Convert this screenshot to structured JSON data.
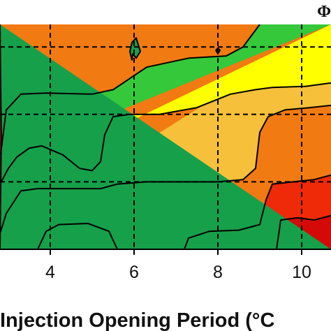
{
  "chart_data": {
    "type": "heatmap",
    "subtype": "filled-contour",
    "xlabel": "Injection Opening Period (°C",
    "x_ticks": [
      {
        "value": 4,
        "label": "4"
      },
      {
        "value": 6,
        "label": "6"
      },
      {
        "value": 8,
        "label": "8"
      },
      {
        "value": 10,
        "label": "10"
      }
    ],
    "xlim": [
      2.8,
      10.7
    ],
    "ylim": [
      0,
      1
    ],
    "grid": "dashed",
    "grid_x": [
      4,
      6,
      8,
      10
    ],
    "grid_y": [
      0.3,
      0.6,
      0.9
    ],
    "corner_label": "Φ",
    "levels": [
      {
        "level": 0,
        "color": "#1a3fd8"
      },
      {
        "level": 1,
        "color": "#16a04a"
      },
      {
        "level": 2,
        "color": "#34c83a"
      },
      {
        "level": 3,
        "color": "#ffff00"
      },
      {
        "level": 4,
        "color": "#f6c03a"
      },
      {
        "level": 5,
        "color": "#f27a12"
      },
      {
        "level": 6,
        "color": "#ee2a08"
      },
      {
        "level": 7,
        "color": "#d40a08"
      }
    ],
    "contours": [
      {
        "level": 2,
        "points": [
          [
            2.8,
            0.4
          ],
          [
            2.95,
            0.62
          ],
          [
            3.3,
            0.69
          ],
          [
            3.9,
            0.695
          ],
          [
            5.0,
            0.69
          ],
          [
            5.5,
            0.71
          ],
          [
            6.3,
            0.81
          ],
          [
            7.3,
            0.85
          ],
          [
            8.2,
            0.86
          ],
          [
            8.6,
            0.9
          ],
          [
            9.0,
            1.0
          ]
        ]
      },
      {
        "level": 3,
        "points": [
          [
            2.8,
            0.29
          ],
          [
            3.0,
            0.36
          ],
          [
            3.2,
            0.41
          ],
          [
            3.5,
            0.45
          ],
          [
            3.8,
            0.46
          ],
          [
            4.3,
            0.42
          ],
          [
            4.7,
            0.36
          ],
          [
            5.0,
            0.35
          ],
          [
            5.2,
            0.39
          ],
          [
            5.3,
            0.51
          ],
          [
            5.5,
            0.59
          ],
          [
            5.9,
            0.6
          ],
          [
            6.6,
            0.6
          ],
          [
            7.5,
            0.63
          ],
          [
            8.3,
            0.69
          ],
          [
            8.9,
            0.71
          ],
          [
            9.3,
            0.72
          ],
          [
            10.1,
            0.725
          ],
          [
            10.7,
            0.74
          ]
        ]
      },
      {
        "level": 4,
        "points": [
          [
            2.8,
            0.07
          ],
          [
            2.95,
            0.16
          ],
          [
            3.3,
            0.26
          ],
          [
            3.7,
            0.27
          ],
          [
            5.2,
            0.27
          ],
          [
            5.6,
            0.29
          ],
          [
            6.3,
            0.3
          ],
          [
            7.2,
            0.3
          ],
          [
            8.0,
            0.3
          ],
          [
            8.6,
            0.31
          ],
          [
            8.9,
            0.36
          ],
          [
            9.0,
            0.52
          ],
          [
            9.2,
            0.59
          ],
          [
            9.6,
            0.62
          ],
          [
            10.2,
            0.63
          ],
          [
            10.7,
            0.64
          ]
        ]
      },
      {
        "level": 5,
        "points": [
          [
            3.7,
            0.0
          ],
          [
            3.9,
            0.08
          ],
          [
            4.2,
            0.11
          ],
          [
            4.9,
            0.115
          ],
          [
            5.4,
            0.08
          ],
          [
            5.6,
            0.0
          ]
        ]
      },
      {
        "level": 5,
        "points": [
          [
            7.2,
            0.0
          ],
          [
            7.3,
            0.05
          ],
          [
            7.8,
            0.08
          ],
          [
            8.5,
            0.085
          ],
          [
            9.0,
            0.11
          ],
          [
            9.15,
            0.22
          ],
          [
            9.3,
            0.29
          ],
          [
            9.8,
            0.3
          ],
          [
            10.3,
            0.31
          ],
          [
            10.7,
            0.33
          ]
        ]
      },
      {
        "level": 6,
        "points": [
          [
            9.4,
            0.0
          ],
          [
            9.5,
            0.13
          ],
          [
            9.9,
            0.14
          ],
          [
            10.3,
            0.13
          ],
          [
            10.7,
            0.15
          ]
        ]
      },
      {
        "level": 1,
        "points": [
          [
            2.8,
            1.0
          ],
          [
            2.83,
            0.5
          ],
          [
            2.8,
            0.0
          ]
        ]
      },
      {
        "level": 1,
        "points": [
          [
            5.95,
            0.84
          ],
          [
            5.97,
            0.87
          ],
          [
            6.05,
            0.85
          ],
          [
            6.15,
            0.88
          ],
          [
            6.1,
            0.91
          ],
          [
            6.05,
            0.94
          ],
          [
            5.95,
            0.92
          ],
          [
            5.9,
            0.88
          ],
          [
            5.95,
            0.84
          ]
        ]
      },
      {
        "level": 1,
        "points": [
          [
            7.95,
            0.885
          ],
          [
            8.0,
            0.87
          ],
          [
            8.05,
            0.885
          ],
          [
            8.0,
            0.895
          ],
          [
            7.95,
            0.885
          ]
        ]
      }
    ]
  }
}
